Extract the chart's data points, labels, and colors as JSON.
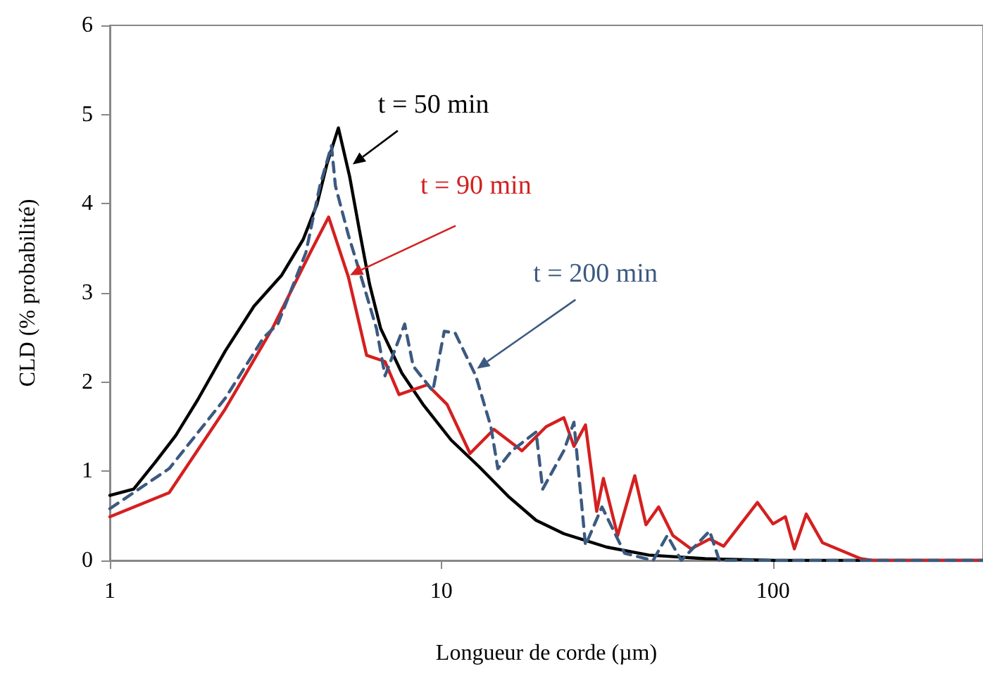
{
  "chart_data": {
    "type": "line",
    "xlabel": "Longueur de corde (µm)",
    "ylabel": "CLD (% probabilité)",
    "log": "x",
    "xlim": [
      1,
      430
    ],
    "xticks": [
      1,
      10,
      100
    ],
    "ylim": [
      0,
      6
    ],
    "yticks": [
      0,
      1,
      2,
      3,
      4,
      5,
      6
    ],
    "grid": false,
    "marker": "none",
    "series": [
      {
        "color": "#000000",
        "line_style": "solid",
        "x": [
          1,
          1.18,
          1.37,
          1.58,
          1.84,
          2.23,
          2.72,
          3.3,
          3.83,
          4.22,
          4.52,
          4.89,
          5.29,
          5.66,
          6.07,
          6.56,
          7.6,
          8.8,
          10.7,
          13,
          15.9,
          19.3,
          23.4,
          31.5,
          42.2,
          62.5,
          102,
          166,
          272,
          430
        ],
        "values": [
          0.73,
          0.8,
          1.1,
          1.4,
          1.8,
          2.35,
          2.85,
          3.2,
          3.6,
          4.0,
          4.45,
          4.85,
          4.3,
          3.7,
          3.1,
          2.6,
          2.1,
          1.75,
          1.35,
          1.05,
          0.72,
          0.45,
          0.3,
          0.15,
          0.06,
          0.02,
          0,
          0,
          0,
          0
        ]
      },
      {
        "color": "#d42020",
        "line_style": "solid",
        "x": [
          1,
          1.51,
          2.23,
          3.09,
          4.02,
          4.57,
          5.24,
          5.95,
          6.76,
          7.45,
          9.07,
          10.4,
          12.2,
          14.4,
          17.5,
          20.7,
          23.4,
          25.1,
          27.2,
          29.4,
          30.8,
          34,
          38.3,
          41.4,
          45.2,
          49.9,
          56.6,
          64.4,
          71,
          89.8,
          100,
          109,
          116,
          126,
          141,
          184,
          200,
          430
        ],
        "values": [
          0.49,
          0.76,
          1.7,
          2.6,
          3.45,
          3.85,
          3.18,
          2.3,
          2.23,
          1.86,
          1.97,
          1.75,
          1.2,
          1.47,
          1.23,
          1.5,
          1.6,
          1.28,
          1.52,
          0.55,
          0.92,
          0.28,
          0.95,
          0.4,
          0.6,
          0.28,
          0.13,
          0.24,
          0.16,
          0.65,
          0.41,
          0.49,
          0.13,
          0.52,
          0.2,
          0.02,
          0,
          0
        ]
      },
      {
        "color": "#3c5a80",
        "line_style": "dashed",
        "x": [
          1,
          1.51,
          2.23,
          2.91,
          3.21,
          3.9,
          4.3,
          4.66,
          4.79,
          5.24,
          5.78,
          6.37,
          6.76,
          7.75,
          8.22,
          9.42,
          10.2,
          11,
          12.7,
          14.1,
          14.8,
          16.3,
          19.3,
          20.2,
          23.4,
          25.1,
          27.2,
          30.5,
          35.7,
          43.5,
          48,
          52.9,
          64.4,
          68.9,
          430
        ],
        "values": [
          0.58,
          1.03,
          1.82,
          2.5,
          2.65,
          3.45,
          4.2,
          4.65,
          4.2,
          3.65,
          3.13,
          2.6,
          2.07,
          2.65,
          2.18,
          1.9,
          2.57,
          2.55,
          2.07,
          1.5,
          1.03,
          1.23,
          1.44,
          0.8,
          1.23,
          1.55,
          0.17,
          0.6,
          0.08,
          0,
          0.28,
          0,
          0.33,
          0,
          0
        ]
      }
    ],
    "annotations": [
      {
        "text": "t = 50 min",
        "x": 5.4,
        "y": 4.44
      },
      {
        "text": "t = 90 min",
        "x": 5.3,
        "y": 3.2
      },
      {
        "text": "t = 200 min",
        "x": 12.8,
        "y": 2.15
      }
    ]
  }
}
